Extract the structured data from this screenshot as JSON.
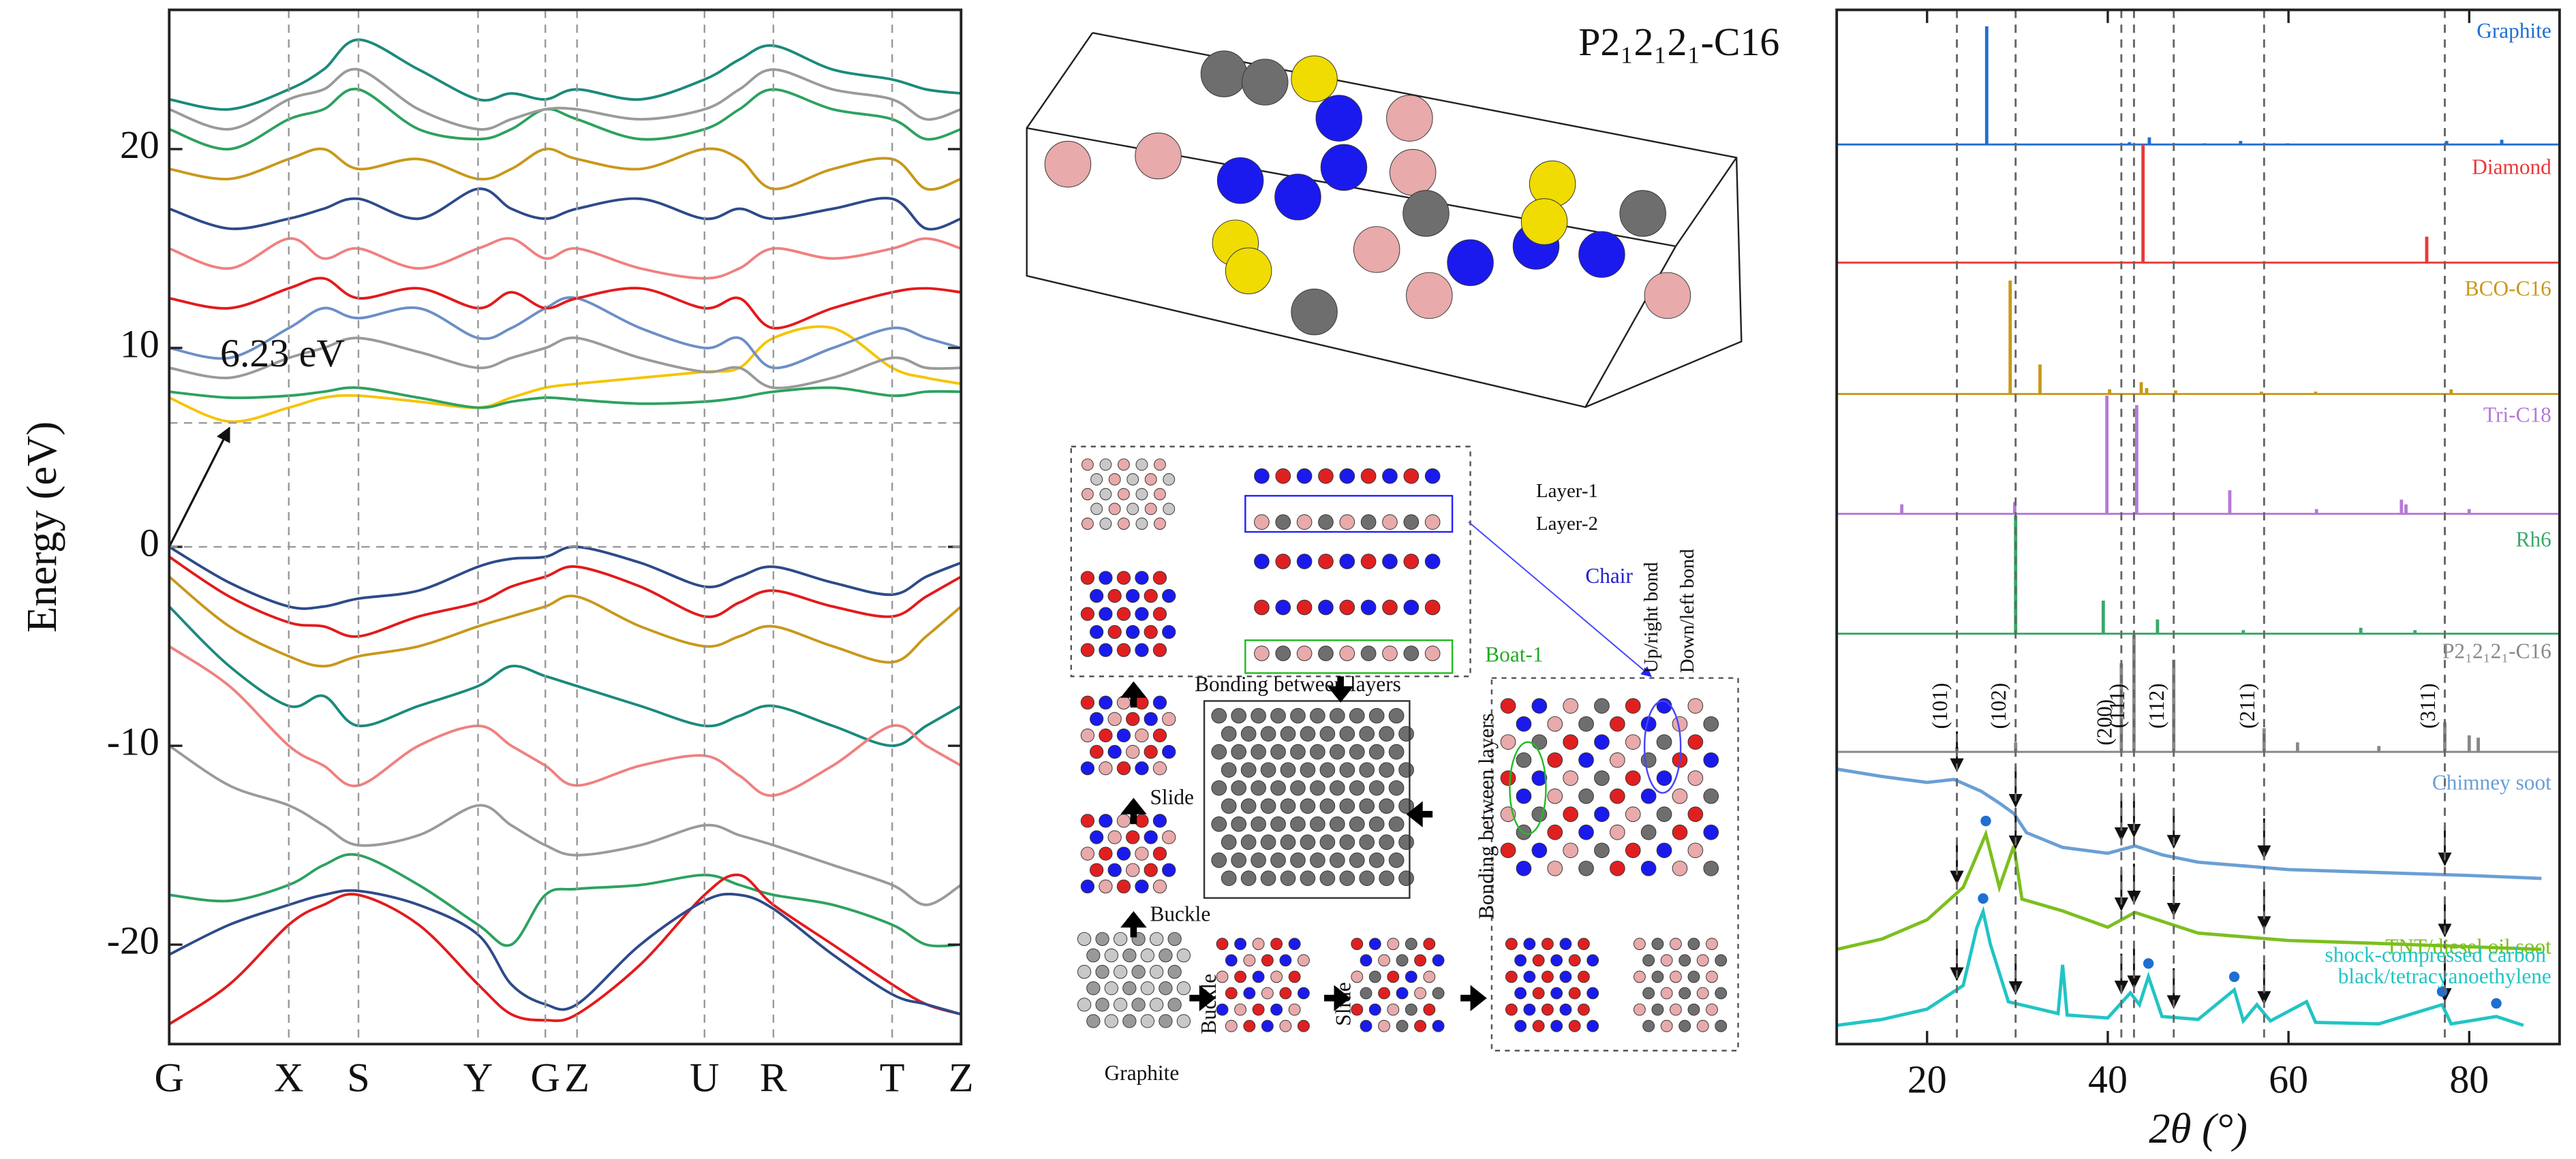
{
  "chart_data": [
    {
      "type": "line",
      "y_label": "Energy (eV)",
      "x": [
        0,
        0.076,
        0.151,
        0.195,
        0.239,
        0.315,
        0.39,
        0.432,
        0.475,
        0.515,
        0.595,
        0.676,
        0.72,
        0.763,
        0.838,
        0.913,
        0.956,
        1
      ],
      "xlim": [
        0,
        1
      ],
      "xticks": [
        {
          "value": 0,
          "label": "G"
        },
        {
          "value": 0.151,
          "label": "X"
        },
        {
          "value": 0.239,
          "label": "S"
        },
        {
          "value": 0.39,
          "label": "Y"
        },
        {
          "value": 0.475,
          "label": "G"
        },
        {
          "value": 0.515,
          "label": "Z"
        },
        {
          "value": 0.676,
          "label": "U"
        },
        {
          "value": 0.763,
          "label": "R"
        },
        {
          "value": 0.913,
          "label": "T"
        },
        {
          "value": 1,
          "label": "Z"
        }
      ],
      "ylim": [
        -25,
        27
      ],
      "yticks": [
        -20,
        -10,
        0,
        10,
        20
      ],
      "gap": {
        "value": 6.23,
        "label": "6.23 eV"
      },
      "series": [
        {
          "color": "#2e4a8a",
          "values": [
            0,
            -1.8,
            -3,
            -3,
            -2.6,
            -2.2,
            -1,
            -0.6,
            -0.5,
            0,
            -0.8,
            -2,
            -1.5,
            -1,
            -1.8,
            -2.4,
            -1.5,
            -0.8
          ]
        },
        {
          "color": "#e31a1c",
          "values": [
            -0.5,
            -2.5,
            -3.8,
            -4,
            -4.5,
            -3.5,
            -2.8,
            -2,
            -1.5,
            -1,
            -2,
            -3.5,
            -2.8,
            -2.2,
            -3,
            -3.5,
            -2.5,
            -1.5
          ]
        },
        {
          "color": "#c9981a",
          "values": [
            -1.5,
            -4,
            -5.5,
            -6,
            -5.5,
            -5,
            -4,
            -3.5,
            -3,
            -2.5,
            -4,
            -5,
            -4.5,
            -4,
            -5,
            -5.8,
            -4.5,
            -3
          ]
        },
        {
          "color": "#1b8a7a",
          "values": [
            -3,
            -6,
            -8,
            -7.5,
            -9,
            -8,
            -7,
            -6,
            -6.5,
            -7,
            -8,
            -9,
            -8.5,
            -8,
            -9,
            -10,
            -9,
            -8
          ]
        },
        {
          "color": "#f08080",
          "values": [
            -5,
            -7,
            -10,
            -11,
            -12,
            -10,
            -9,
            -10,
            -11,
            -12,
            -11,
            -10.5,
            -11.5,
            -12.5,
            -11,
            -9,
            -10,
            -11
          ]
        },
        {
          "color": "#9a9a9a",
          "values": [
            -10,
            -12,
            -13,
            -14,
            -15,
            -14.5,
            -13,
            -14,
            -15,
            -15.5,
            -15,
            -14,
            -14.5,
            -15,
            -16,
            -17,
            -18,
            -17
          ]
        },
        {
          "color": "#2ca25f",
          "values": [
            -17.5,
            -17.8,
            -17,
            -16,
            -15.5,
            -17,
            -19,
            -20,
            -17.5,
            -17.2,
            -17,
            -16.5,
            -17,
            -17.5,
            -18,
            -19,
            -20,
            -20
          ]
        },
        {
          "color": "#e31a1c",
          "values": [
            -24,
            -22,
            -19,
            -18,
            -17.5,
            -19,
            -22,
            -23.5,
            -23.8,
            -23.5,
            -21,
            -17.5,
            -16.5,
            -18,
            -20,
            -22,
            -23,
            -23.5
          ]
        },
        {
          "color": "#2e4a8a",
          "values": [
            -20.5,
            -19,
            -18,
            -17.5,
            -17.3,
            -18,
            -19.5,
            -22,
            -23,
            -23,
            -20,
            -17.8,
            -17.5,
            -18.2,
            -20.5,
            -22.5,
            -23,
            -23.5
          ]
        },
        {
          "color": "#f5c400",
          "values": [
            7.5,
            6.3,
            7,
            7.5,
            7.6,
            7.3,
            7,
            7.5,
            8,
            8.2,
            8.5,
            8.8,
            9,
            10.5,
            11,
            9,
            8.5,
            8.2
          ]
        },
        {
          "color": "#2ca25f",
          "values": [
            7.8,
            7.5,
            7.6,
            7.8,
            8,
            7.5,
            7,
            7.3,
            7.5,
            7.4,
            7.2,
            7.3,
            7.5,
            7.8,
            8,
            7.6,
            7.8,
            7.8
          ]
        },
        {
          "color": "#9a9a9a",
          "values": [
            9,
            8.5,
            9.5,
            10,
            10.5,
            9.8,
            9,
            9.5,
            10,
            10.5,
            9.5,
            8.8,
            9,
            8,
            8.5,
            9.5,
            9,
            9
          ]
        },
        {
          "color": "#6b8fc7",
          "values": [
            10,
            9.5,
            11,
            12,
            11.5,
            12,
            10.5,
            11,
            12,
            12.5,
            11,
            10,
            10.5,
            9,
            10,
            11,
            10.5,
            10
          ]
        },
        {
          "color": "#e31a1c",
          "values": [
            12.5,
            12,
            13,
            13.5,
            12.5,
            13,
            12,
            12.8,
            12,
            12.5,
            13,
            12,
            12.5,
            11,
            12,
            12.8,
            13,
            12.8
          ]
        },
        {
          "color": "#f08080",
          "values": [
            15,
            14,
            15.5,
            14.5,
            15,
            14,
            15,
            15.5,
            14.5,
            15,
            14,
            13.5,
            14,
            15,
            14.5,
            15,
            15.5,
            15
          ]
        },
        {
          "color": "#2e4a8a",
          "values": [
            17,
            16,
            16.5,
            17,
            17.5,
            16.5,
            18,
            17,
            16.5,
            17,
            17.5,
            16.5,
            17,
            16.5,
            17,
            17.5,
            16,
            16.5
          ]
        },
        {
          "color": "#c9981a",
          "values": [
            19,
            18.5,
            19.5,
            20,
            19,
            19.5,
            18.5,
            19,
            20,
            19.5,
            19,
            20,
            19.5,
            18,
            19,
            19.5,
            18,
            18.5
          ]
        },
        {
          "color": "#2ca25f",
          "values": [
            21,
            20,
            21.5,
            22,
            23,
            21,
            20.5,
            21,
            22,
            21.5,
            20.5,
            21,
            22,
            23,
            22,
            21.5,
            20.5,
            21
          ]
        },
        {
          "color": "#9a9a9a",
          "values": [
            22,
            21,
            22.5,
            23,
            24,
            22,
            21,
            21.5,
            22,
            22,
            21.5,
            22,
            23,
            24,
            23,
            22.5,
            21.5,
            22
          ]
        },
        {
          "color": "#1b8a7a",
          "values": [
            22.5,
            22,
            23,
            24,
            25.5,
            24,
            22.5,
            22.8,
            22.5,
            23,
            22.5,
            23.5,
            24.5,
            25.2,
            24,
            23.5,
            23,
            22.8
          ]
        }
      ]
    },
    {
      "type": "xrd",
      "x_label": "2θ (°)",
      "xlim": [
        10,
        90
      ],
      "xticks": [
        20,
        40,
        60,
        80
      ],
      "reference_lines": [
        {
          "value": 23.3,
          "label": "(101)"
        },
        {
          "value": 29.8,
          "label": "(102)"
        },
        {
          "value": 41.5,
          "label": "(200)"
        },
        {
          "value": 42.9,
          "label": "(111)"
        },
        {
          "value": 47.3,
          "label": "(112)"
        },
        {
          "value": 57.3,
          "label": "(211)"
        },
        {
          "value": 77.3,
          "label": "(311)"
        }
      ],
      "series": [
        {
          "name": "Graphite",
          "color": "#1f6fd1",
          "mode": "stick",
          "x": [
            26.6,
            42.4,
            44.6,
            50.7,
            54.7,
            59.9,
            77.5,
            83.6
          ],
          "values": [
            100,
            2,
            6,
            1,
            3,
            1,
            3,
            4
          ]
        },
        {
          "name": "Diamond",
          "color": "#e8393a",
          "mode": "stick",
          "x": [
            43.9,
            75.3
          ],
          "values": [
            100,
            22
          ]
        },
        {
          "name": "BCO-C16",
          "color": "#c9981a",
          "mode": "stick",
          "x": [
            29.2,
            32.5,
            40.2,
            43.7,
            44.3,
            47.5,
            57,
            63,
            78
          ],
          "values": [
            96,
            25,
            4,
            10,
            5,
            3,
            2,
            2,
            4
          ]
        },
        {
          "name": "Tri-C18",
          "color": "#b57ad6",
          "mode": "stick",
          "x": [
            17.2,
            29.7,
            39.9,
            43.2,
            53.5,
            63.1,
            72.5,
            73,
            80
          ],
          "values": [
            8,
            10,
            100,
            92,
            20,
            4,
            12,
            8,
            4
          ]
        },
        {
          "name": "Rh6",
          "color": "#3aa86a",
          "mode": "stick",
          "x": [
            29.8,
            39.5,
            45.5,
            55,
            68,
            74
          ],
          "values": [
            100,
            28,
            12,
            3,
            5,
            3
          ]
        },
        {
          "name": "P2₁2₁2₁-C16",
          "color": "#888888",
          "mode": "stick",
          "x": [
            23.3,
            29.8,
            41.5,
            42.9,
            47.3,
            57.3,
            61,
            70,
            77.3,
            80,
            81
          ],
          "values": [
            4,
            8,
            75,
            100,
            78,
            20,
            8,
            5,
            25,
            14,
            12
          ]
        },
        {
          "name": "Chimney soot",
          "color": "#6a9fd4",
          "mode": "curve",
          "x": [
            10,
            15,
            20,
            23,
            26,
            28,
            29.6,
            31,
            35,
            40,
            43,
            46,
            50,
            60,
            70,
            80,
            88
          ],
          "values": [
            85,
            80,
            76,
            78,
            70,
            62,
            55,
            42,
            32,
            28,
            33,
            27,
            22,
            17,
            15,
            13,
            11
          ],
          "dots": []
        },
        {
          "name": "TNT/diesel oil soot",
          "color": "#7cbf1e",
          "mode": "curve",
          "x": [
            10,
            15,
            20,
            24,
            26.5,
            28,
            29.6,
            30.5,
            35,
            40,
            43,
            50,
            60,
            70,
            88
          ],
          "values": [
            13,
            20,
            33,
            55,
            91,
            55,
            83,
            47,
            39,
            28,
            38,
            24,
            19,
            17,
            13
          ],
          "dots": [
            26.5
          ]
        },
        {
          "name": "shock-compressed carbon black/tetracyanoethylene",
          "color": "#22c4c4",
          "mode": "curve",
          "x": [
            10,
            15,
            20,
            24,
            25.5,
            26.2,
            27,
            29,
            34.5,
            35,
            35.5,
            40,
            42.5,
            43.5,
            44.5,
            46,
            50,
            54,
            55,
            56.5,
            58,
            62,
            63,
            70,
            77,
            78,
            83,
            86
          ],
          "values": [
            6,
            10,
            17,
            33,
            72,
            83,
            61,
            22,
            14,
            47,
            13,
            11,
            28,
            20,
            39,
            12,
            10,
            30,
            9,
            20,
            9,
            22,
            8,
            7,
            20,
            7,
            12,
            6
          ],
          "dots": [
            26.2,
            44.5,
            54,
            77,
            83
          ]
        }
      ]
    }
  ],
  "diagram": {
    "title": "P2₁2₁2₁-C16",
    "layer_1": "Layer-1",
    "layer_2": "Layer-2",
    "up_right_bond": "Up/right bond",
    "down_left_bond": "Down/left bond",
    "chair": "Chair",
    "boat": "Boat-1",
    "bonding_top": "Bonding between layers",
    "bonding_side": "Bonding between layers",
    "slide_up": "Slide",
    "buckle_up": "Buckle",
    "buckle_right": "Buckle",
    "slide_right": "Slide",
    "graphite": "Graphite"
  }
}
